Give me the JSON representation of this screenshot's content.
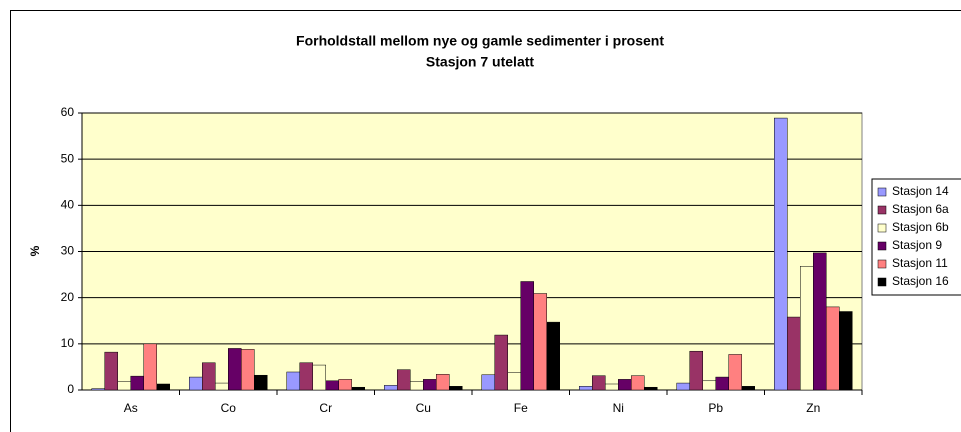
{
  "chart_data": {
    "type": "bar",
    "title": "Forholdstall mellom nye og gamle sedimenter i prosent",
    "subtitle": "Stasjon 7 utelatt",
    "y_label": "%",
    "categories": [
      "As",
      "Co",
      "Cr",
      "Cu",
      "Fe",
      "Ni",
      "Pb",
      "Zn"
    ],
    "series": [
      {
        "name": "Stasjon 14",
        "color": "#9999ff",
        "values": [
          0.3,
          2.8,
          3.9,
          1.0,
          3.3,
          0.8,
          1.5,
          58.9
        ]
      },
      {
        "name": "Stasjon 6a",
        "color": "#993366",
        "values": [
          8.2,
          5.9,
          5.9,
          4.4,
          11.9,
          3.1,
          8.4,
          15.8
        ]
      },
      {
        "name": "Stasjon 6b",
        "color": "#ffffcc",
        "values": [
          1.8,
          1.5,
          5.4,
          1.8,
          3.8,
          1.3,
          2.0,
          26.8
        ]
      },
      {
        "name": "Stasjon 9",
        "color": "#660066",
        "values": [
          3.0,
          9.0,
          2.0,
          2.3,
          23.5,
          2.3,
          2.8,
          29.7
        ]
      },
      {
        "name": "Stasjon 11",
        "color": "#ff8080",
        "values": [
          10.0,
          8.8,
          2.3,
          3.4,
          20.9,
          3.1,
          7.7,
          18.0
        ]
      },
      {
        "name": "Stasjon 16",
        "color": "#000000",
        "values": [
          1.3,
          3.2,
          0.6,
          0.8,
          14.7,
          0.6,
          0.8,
          17.0
        ]
      }
    ],
    "ylim": [
      0,
      60
    ],
    "yticks": [
      0,
      10,
      20,
      30,
      40,
      50,
      60
    ],
    "grid": true,
    "plot_background": "#ffffcc",
    "legend": "right"
  }
}
